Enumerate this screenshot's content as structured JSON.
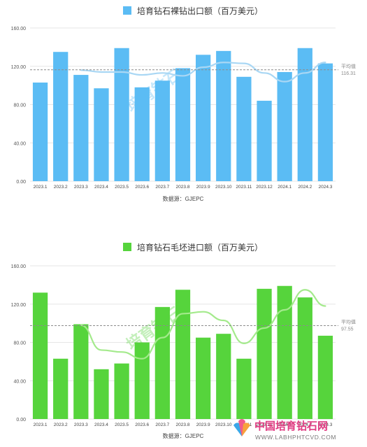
{
  "charts": [
    {
      "type": "bar",
      "title": "培育钻石裸钻出口额（百万美元）",
      "categories": [
        "2023.1",
        "2023.2",
        "2023.3",
        "2023.4",
        "2023.5",
        "2023.6",
        "2023.7",
        "2023.8",
        "2023.9",
        "2023.10",
        "2023.11",
        "2023.12",
        "2024.1",
        "2024.2",
        "2024.3"
      ],
      "values": [
        103,
        135,
        111,
        97,
        139,
        98,
        105,
        118,
        132,
        136,
        109,
        84,
        114,
        139,
        123
      ],
      "trend": [
        null,
        null,
        116,
        114,
        114,
        111,
        113,
        110,
        119,
        124,
        123,
        113,
        104,
        113,
        124
      ],
      "yticks": [
        "0.00",
        "40.00",
        "80.00",
        "120.00",
        "160.00"
      ],
      "ylim": [
        0,
        160
      ],
      "average_label": "平均值",
      "average_value_label": "116.31",
      "average": 116.31,
      "source": "数据源：GJEPC",
      "bar_color": "#5bbcf4",
      "line_color": "#a9d7f4",
      "watermark": "培育钻石"
    },
    {
      "type": "bar",
      "title": "培育钻石毛坯进口额（百万美元）",
      "categories": [
        "2023.1",
        "2023.2",
        "2023.3",
        "2023.4",
        "2023.5",
        "2023.6",
        "2023.7",
        "2023.8",
        "2023.9",
        "2023.10",
        "2023.11",
        "2023.12",
        "2024.1",
        "2024.2",
        "2024.3"
      ],
      "values": [
        132,
        63,
        99,
        52,
        58,
        80,
        117,
        135,
        85,
        89,
        63,
        136,
        139,
        127,
        87
      ],
      "trend": [
        null,
        null,
        98,
        72,
        70,
        63,
        85,
        110,
        112,
        103,
        79,
        95,
        114,
        135,
        118
      ],
      "yticks": [
        "0.00",
        "40.00",
        "80.00",
        "120.00",
        "160.00"
      ],
      "ylim": [
        0,
        160
      ],
      "average_label": "平均值",
      "average_value_label": "97.55",
      "average": 97.55,
      "source": "数据源：GJEPC",
      "bar_color": "#56d43c",
      "line_color": "#a4ea8c",
      "watermark": "培育钻石"
    }
  ],
  "logo": {
    "name_cn": "中国培育钻石网",
    "url_text": "WWW.LABHPHTCVD.COM"
  }
}
